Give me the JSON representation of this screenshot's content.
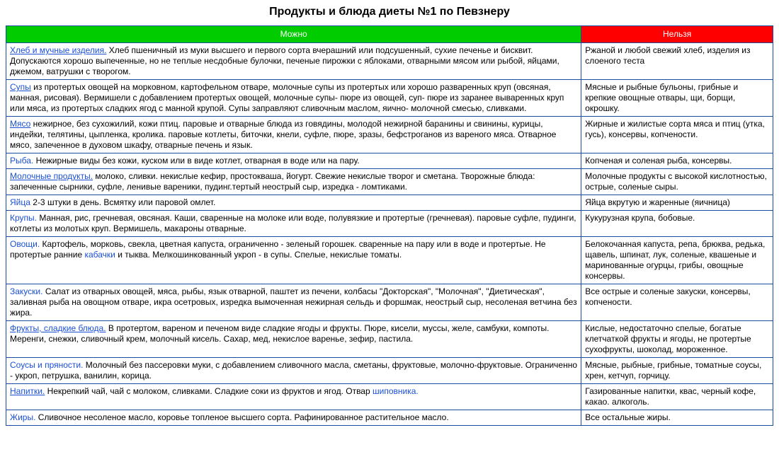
{
  "title": "Продукты и блюда диеты №1 по Певзнеру",
  "headers": {
    "allowed": "Можно",
    "forbidden": "Нельзя"
  },
  "header_colors": {
    "allowed_bg": "#00cc00",
    "forbidden_bg": "#ff0000",
    "header_text": "#ffffff",
    "border": "#1a4d9e",
    "link": "#1a4fd6"
  },
  "rows": [
    {
      "category": "Хлеб и мучные изделия.",
      "underline": true,
      "allowed": "Хлеб пшеничный из муки высшего и первого сорта вчерашний или подсушенный, сухие печенье и бисквит. Допускаются хорошо выпеченные, но не теплые несдобные булочки, печеные пирожки с яблоками, отварными мясом или рыбой, яйцами, джемом, ватрушки с творогом.",
      "forbidden": "Ржаной и любой свежий хлеб, изделия из слоеного теста"
    },
    {
      "category": "Супы",
      "underline": true,
      "allowed": "из протертых овощей на морковном, картофельном отваре, молочные супы из протертых или хорошо разваренных круп (овсяная, манная, рисовая). Вермишели с добавлением протертых овощей, молочные супы- пюре из овощей, суп- пюре из заранее вываренных круп или мяса, из протертых сладких ягод с манной крупой. Супы заправляют сливочным маслом, яично- молочной смесью, сливками.",
      "forbidden": "Мясные и рыбные бульоны, грибные и крепкие овощные отвары, щи, борщи, окрошку."
    },
    {
      "category": "Мясо",
      "underline": true,
      "allowed": "нежирное, без сухожилий, кожи птиц. паровые и отварные блюда из говядины, молодой нежирной баранины и свинины, курицы, индейки, телятины, цыпленка, кролика. паровые котлеты, биточки, кнели, суфле, пюре, зразы, бефстроганов из вареного мяса. Отварное мясо, запеченное в духовом шкафу, отварные печень и язык.",
      "forbidden": "Жирные и жилистые сорта мяса и птиц (утка, гусь), консервы, копчености."
    },
    {
      "category": "Рыба.",
      "underline": false,
      "allowed": "Нежирные виды без кожи, куском или в виде котлет, отварная в воде или на пару.",
      "forbidden": "Копченая и соленая рыба, консервы."
    },
    {
      "category": "Молочные продукты.",
      "underline": true,
      "allowed": "молоко, сливки. некислые кефир, простокваша, йогурт. Свежие некислые творог и сметана. Творожные блюда: запеченные сырники, суфле, ленивые вареники, пудинг.тертый неострый сыр, изредка - ломтиками.",
      "forbidden": "Молочные продукты с высокой кислотностью, острые, соленые сыры."
    },
    {
      "category": "Яйца",
      "underline": false,
      "allowed": "2-3 штуки в день. Всмятку или паровой омлет.",
      "forbidden": "Яйца вкрутую и жаренные (яичница)"
    },
    {
      "category": "Крупы.",
      "underline": false,
      "allowed": "Манная, рис, гречневая, овсяная. Каши, сваренные на молоке или воде, полувязкие и протертые (гречневая). паровые суфле, пудинги, котлеты из молотых круп. Вермишель, макароны отварные.",
      "forbidden": "Кукурузная крупа, бобовые."
    },
    {
      "category": "Овощи.",
      "underline": false,
      "allowed_pre": "Картофель, морковь, свекла, цветная капуста, ограниченно - зеленый горошек. сваренные на пару или в воде и протертые. Не протертые ранние ",
      "allowed_link": "кабачки",
      "allowed_post": " и тыква. Мелкошинкованный укроп - в супы. Спелые, некислые томаты.",
      "forbidden": "Белокочанная капуста, репа, брюква, редька, щавель, шпинат, лук, соленые, квашеные и маринованные огурцы, грибы, овощные консервы."
    },
    {
      "category": "Закуски.",
      "underline": false,
      "allowed": "Салат из отварных овощей, мяса, рыбы, язык отварной, паштет из печени, колбасы \"Докторская\", \"Молочная\", \"Диетическая\", заливная рыба на овощном отваре, икра осетровых, изредка вымоченная нежирная сельдь и форшмак, неострый сыр, несоленая ветчина без жира.",
      "forbidden": "Все острые и соленые закуски, консервы, копчености."
    },
    {
      "category": "Фрукты, сладкие блюда.",
      "underline": true,
      "allowed": "В протертом, вареном и печеном виде сладкие ягоды и фрукты. Пюре, кисели, муссы, желе, самбуки, компоты. Меренги, снежки, сливочный крем, молочный кисель. Сахар, мед, некислое варенье, зефир, пастила.",
      "forbidden": "Кислые, недостаточно спелые, богатые клетчаткой фрукты и ягоды, не протертые сухофрукты, шоколад, мороженное."
    },
    {
      "category": "Соусы и пряности.",
      "underline": false,
      "allowed": "Молочный без пассеровки муки, с добавлением сливочного масла, сметаны, фруктовые, молочно-фруктовые. Ограниченно - укроп, петрушка, ванилин, корица.",
      "forbidden": "Мясные, рыбные, грибные, томатные соусы, хрен, кетчуп, горчицу."
    },
    {
      "category": "Напитки.",
      "underline": true,
      "allowed_pre": "Некрепкий чай, чай с молоком, сливками. Сладкие соки из фруктов и ягод. Отвар ",
      "allowed_link": "шиповника.",
      "allowed_post": "",
      "forbidden": "Газированные напитки, квас, черный кофе, какао. алкоголь."
    },
    {
      "category": "Жиры.",
      "underline": false,
      "allowed": "Сливочное несоленое масло, коровье топленое высшего сорта. Рафинированное растительное масло.",
      "forbidden": "Все остальные жиры."
    }
  ]
}
